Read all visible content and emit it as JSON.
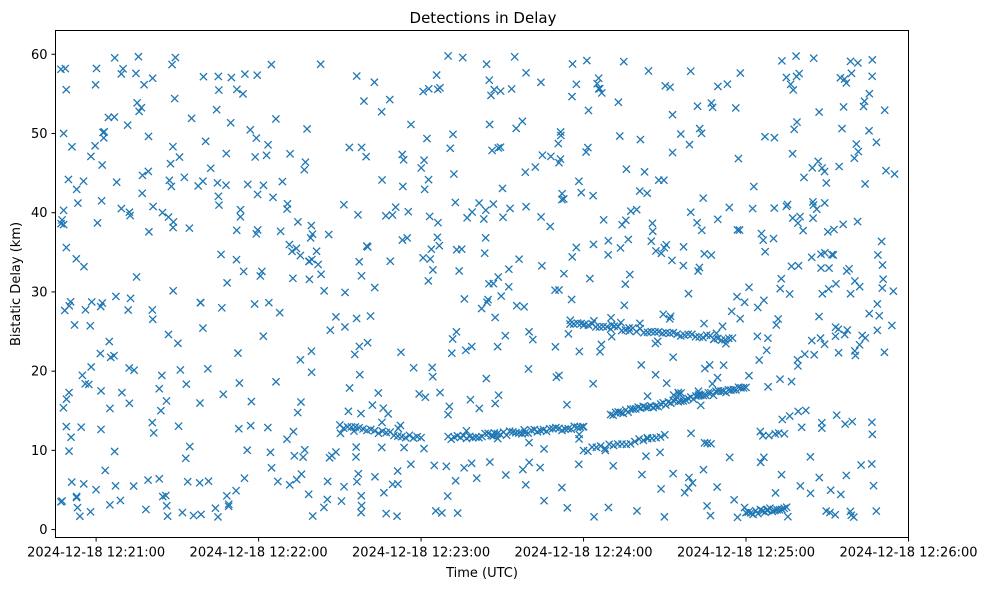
{
  "chart_data": {
    "type": "scatter",
    "title": "Detections in Delay",
    "xlabel": "Time (UTC)",
    "ylabel": "Bistatic Delay (km)",
    "marker": "x",
    "color": "#1f77b4",
    "grid": false,
    "legend": "none",
    "xlim": [
      "2024-12-18 12:20:45",
      "2024-12-18 12:26:00"
    ],
    "ylim": [
      -1,
      63
    ],
    "xticks": [
      "2024-12-18 12:21:00",
      "2024-12-18 12:22:00",
      "2024-12-18 12:23:00",
      "2024-12-18 12:24:00",
      "2024-12-18 12:25:00",
      "2024-12-18 12:26:00"
    ],
    "yticks": [
      0,
      10,
      20,
      30,
      40,
      50,
      60
    ],
    "tracks": [
      {
        "description": "descending track",
        "start": [
          "2024-12-18 12:22:30",
          13.0
        ],
        "end": [
          "2024-12-18 12:23:00",
          11.5
        ],
        "count": 22
      },
      {
        "description": "rising track",
        "start": [
          "2024-12-18 12:23:10",
          11.5
        ],
        "end": [
          "2024-12-18 12:24:00",
          13.0
        ],
        "count": 45
      },
      {
        "description": "steep rising track",
        "start": [
          "2024-12-18 12:24:10",
          14.5
        ],
        "end": [
          "2024-12-18 12:25:00",
          18.0
        ],
        "count": 55
      },
      {
        "description": "upper track",
        "start": [
          "2024-12-18 12:23:55",
          26.0
        ],
        "end": [
          "2024-12-18 12:24:55",
          24.0
        ],
        "count": 45
      },
      {
        "description": "lower track",
        "start": [
          "2024-12-18 12:24:00",
          10.0
        ],
        "end": [
          "2024-12-18 12:24:30",
          11.8
        ],
        "count": 20
      },
      {
        "description": "bottom track",
        "start": [
          "2024-12-18 12:25:00",
          2.0
        ],
        "end": [
          "2024-12-18 12:25:15",
          2.8
        ],
        "count": 18
      }
    ],
    "sample_points": [
      [
        "2024-12-18 12:20:47",
        58.1
      ],
      [
        "2024-12-18 12:20:48",
        50.0
      ],
      [
        "2024-12-18 12:20:48",
        40.3
      ],
      [
        "2024-12-18 12:20:48",
        38.5
      ],
      [
        "2024-12-18 12:20:49",
        35.6
      ],
      [
        "2024-12-18 12:20:50",
        17.3
      ],
      [
        "2024-12-18 12:20:49",
        13.0
      ],
      [
        "2024-12-18 12:20:50",
        9.9
      ],
      [
        "2024-12-18 12:20:51",
        6.0
      ],
      [
        "2024-12-18 12:20:47",
        3.5
      ],
      [
        "2024-12-18 12:21:45",
        1.6
      ],
      [
        "2024-12-18 12:22:20",
        1.7
      ],
      [
        "2024-12-18 12:23:07",
        17.3
      ],
      [
        "2024-12-18 12:23:15",
        35.4
      ],
      [
        "2024-12-18 12:24:25",
        36.4
      ],
      [
        "2024-12-18 12:25:25",
        59.5
      ],
      [
        "2024-12-18 12:25:28",
        12.8
      ],
      [
        "2024-12-18 12:25:28",
        13.5
      ],
      [
        "2024-12-18 12:25:27",
        52.7
      ],
      [
        "2024-12-18 12:25:29",
        45.2
      ],
      [
        "2024-12-18 12:25:29",
        23.4
      ]
    ]
  }
}
